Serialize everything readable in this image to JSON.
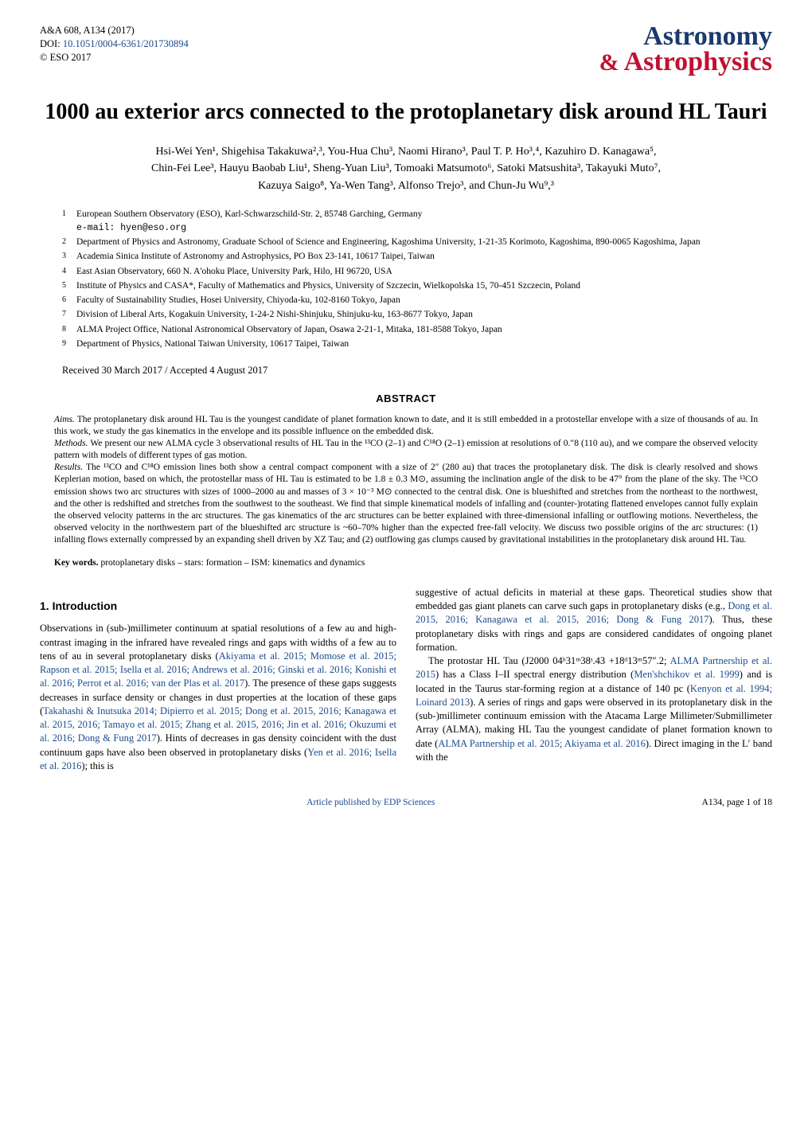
{
  "meta": {
    "journal_ref": "A&A 608, A134 (2017)",
    "doi_label": "DOI: ",
    "doi": "10.1051/0004-6361/201730894",
    "copyright": "© ESO 2017"
  },
  "logo": {
    "top": "Astronomy",
    "bottom": "Astrophysics",
    "amp": "&"
  },
  "title": "1000 au exterior arcs connected to the protoplanetary disk around HL Tauri",
  "authors_line1": "Hsi-Wei Yen¹, Shigehisa Takakuwa²,³, You-Hua Chu³, Naomi Hirano³, Paul T. P. Ho³,⁴, Kazuhiro D. Kanagawa⁵,",
  "authors_line2": "Chin-Fei Lee³, Hauyu Baobab Liu¹, Sheng-Yuan Liu³, Tomoaki Matsumoto⁶, Satoki Matsushita³, Takayuki Muto⁷,",
  "authors_line3": "Kazuya Saigo⁸, Ya-Wen Tang³, Alfonso Trejo³, and Chun-Ju Wu⁹,³",
  "affiliations": [
    {
      "num": "1",
      "text": "European Southern Observatory (ESO), Karl-Schwarzschild-Str. 2, 85748 Garching, Germany",
      "email": "e-mail: hyen@eso.org"
    },
    {
      "num": "2",
      "text": "Department of Physics and Astronomy, Graduate School of Science and Engineering, Kagoshima University, 1-21-35 Korimoto, Kagoshima, 890-0065 Kagoshima, Japan"
    },
    {
      "num": "3",
      "text": "Academia Sinica Institute of Astronomy and Astrophysics, PO Box 23-141, 10617 Taipei, Taiwan"
    },
    {
      "num": "4",
      "text": "East Asian Observatory, 660 N. A'ohoku Place, University Park, Hilo, HI 96720, USA"
    },
    {
      "num": "5",
      "text": "Institute of Physics and CASA*, Faculty of Mathematics and Physics, University of Szczecin, Wielkopolska 15, 70-451 Szczecin, Poland"
    },
    {
      "num": "6",
      "text": "Faculty of Sustainability Studies, Hosei University, Chiyoda-ku, 102-8160 Tokyo, Japan"
    },
    {
      "num": "7",
      "text": "Division of Liberal Arts, Kogakuin University, 1-24-2 Nishi-Shinjuku, Shinjuku-ku, 163-8677 Tokyo, Japan"
    },
    {
      "num": "8",
      "text": "ALMA Project Office, National Astronomical Observatory of Japan, Osawa 2-21-1, Mitaka, 181-8588 Tokyo, Japan"
    },
    {
      "num": "9",
      "text": "Department of Physics, National Taiwan University, 10617 Taipei, Taiwan"
    }
  ],
  "received": "Received 30 March 2017 / Accepted 4 August 2017",
  "abstract_heading": "ABSTRACT",
  "abstract": {
    "aims_label": "Aims.",
    "aims": " The protoplanetary disk around HL Tau is the youngest candidate of planet formation known to date, and it is still embedded in a protostellar envelope with a size of thousands of au. In this work, we study the gas kinematics in the envelope and its possible influence on the embedded disk.",
    "methods_label": "Methods.",
    "methods": " We present our new ALMA cycle 3 observational results of HL Tau in the ¹³CO (2–1) and C¹⁸O (2–1) emission at resolutions of 0.″8 (110 au), and we compare the observed velocity pattern with models of different types of gas motion.",
    "results_label": "Results.",
    "results": " The ¹³CO and C¹⁸O emission lines both show a central compact component with a size of 2″ (280 au) that traces the protoplanetary disk. The disk is clearly resolved and shows Keplerian motion, based on which, the protostellar mass of HL Tau is estimated to be 1.8 ± 0.3 M⊙, assuming the inclination angle of the disk to be 47° from the plane of the sky. The ¹³CO emission shows two arc structures with sizes of 1000–2000 au and masses of 3 × 10⁻³ M⊙ connected to the central disk. One is blueshifted and stretches from the northeast to the northwest, and the other is redshifted and stretches from the southwest to the southeast. We find that simple kinematical models of infalling and (counter-)rotating flattened envelopes cannot fully explain the observed velocity patterns in the arc structures. The gas kinematics of the arc structures can be better explained with three-dimensional infalling or outflowing motions. Nevertheless, the observed velocity in the northwestern part of the blueshifted arc structure is ~60–70% higher than the expected free-fall velocity. We discuss two possible origins of the arc structures: (1) infalling flows externally compressed by an expanding shell driven by XZ Tau; and (2) outflowing gas clumps caused by gravitational instabilities in the protoplanetary disk around HL Tau."
  },
  "keywords_label": "Key words.",
  "keywords": " protoplanetary disks – stars: formation – ISM: kinematics and dynamics",
  "section1_heading": "1. Introduction",
  "col_left_p1a": "Observations in (sub-)millimeter continuum at spatial resolutions of a few au and high-contrast imaging in the infrared have revealed rings and gaps with widths of a few au to tens of au in several protoplanetary disks (",
  "col_left_cites1": "Akiyama et al. 2015; Momose et al. 2015; Rapson et al. 2015; Isella et al. 2016; Andrews et al. 2016; Ginski et al. 2016; Konishi et al. 2016; Perrot et al. 2016; van der Plas et al. 2017",
  "col_left_p1b": "). The presence of these gaps suggests decreases in surface density or changes in dust properties at the location of these gaps (",
  "col_left_cites2": "Takahashi & Inutsuka 2014; Dipierro et al. 2015; Dong et al. 2015, 2016; Kanagawa et al. 2015, 2016; Tamayo et al. 2015; Zhang et al. 2015, 2016; Jin et al. 2016; Okuzumi et al. 2016; Dong & Fung 2017",
  "col_left_p1c": "). Hints of decreases in gas density coincident with the dust continuum gaps have also been observed in protoplanetary disks (",
  "col_left_cites3": "Yen et al. 2016; Isella et al. 2016",
  "col_left_p1d": "); this is",
  "col_right_p1a": "suggestive of actual deficits in material at these gaps. Theoretical studies show that embedded gas giant planets can carve such gaps in protoplanetary disks (e.g., ",
  "col_right_cites1": "Dong et al. 2015, 2016; Kanagawa et al. 2015, 2016; Dong & Fung 2017",
  "col_right_p1b": "). Thus, these protoplanetary disks with rings and gaps are considered candidates of ongoing planet formation.",
  "col_right_p2a": "The protostar HL Tau (J2000 04ʰ31ᵐ38ˢ.43 +18ᵈ13ᵐ57″.2; ",
  "col_right_cites2": "ALMA Partnership et al. 2015",
  "col_right_p2b": ") has a Class I–II spectral energy distribution (",
  "col_right_cites3": "Men'shchikov et al. 1999",
  "col_right_p2c": ") and is located in the Taurus star-forming region at a distance of 140 pc (",
  "col_right_cites4": "Kenyon et al. 1994; Loinard 2013",
  "col_right_p2d": "). A series of rings and gaps were observed in its protoplanetary disk in the (sub-)millimeter continuum emission with the Atacama Large Millimeter/Submillimeter Array (ALMA), making HL Tau the youngest candidate of planet formation known to date (",
  "col_right_cites5": "ALMA Partnership et al. 2015; Akiyama et al. 2016",
  "col_right_p2e": "). Direct imaging in the L′ band with the",
  "footer": {
    "center": "Article published by EDP Sciences",
    "right": "A134, page 1 of 18"
  },
  "colors": {
    "link": "#1a4b8c",
    "logo_blue": "#1a3a6e",
    "logo_red": "#c01030",
    "text": "#000000",
    "background": "#ffffff"
  }
}
